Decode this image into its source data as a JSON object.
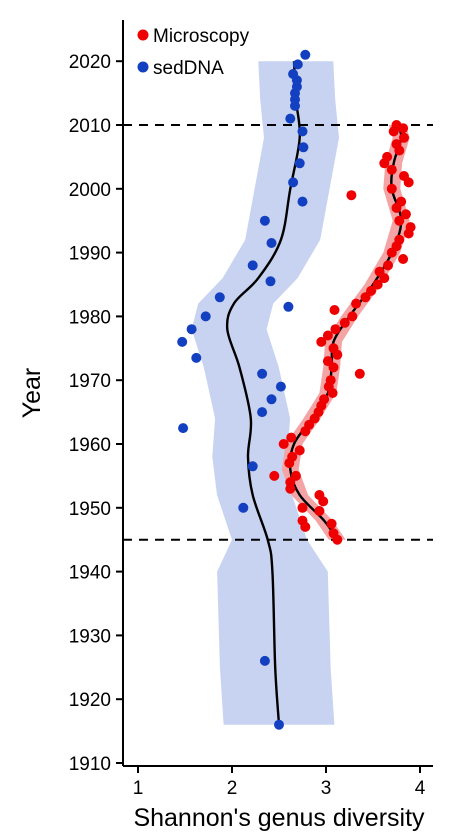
{
  "chart_data": {
    "type": "scatter",
    "title": "",
    "xlabel": "Shannon's genus diversity",
    "ylabel": "Year",
    "xlim": [
      0.82,
      4.15
    ],
    "ylim": [
      1909,
      2022
    ],
    "xticks": [
      1,
      2,
      3,
      4
    ],
    "yticks": [
      1910,
      1920,
      1930,
      1940,
      1950,
      1960,
      1970,
      1980,
      1990,
      2000,
      2010,
      2020
    ],
    "reference_lines_y": [
      1945,
      2010
    ],
    "legend": {
      "position": "top-left"
    },
    "colors": {
      "microscopy": "#ee0000",
      "sedDNA": "#1340c0",
      "sed_band": "#c7d3f1",
      "micro_band": "#f4a4a4",
      "trend": "#000000"
    },
    "series": [
      {
        "name": "Microscopy",
        "points": [
          [
            3.12,
            1945
          ],
          [
            3.08,
            1946
          ],
          [
            3.06,
            1947.5
          ],
          [
            2.78,
            1947
          ],
          [
            2.75,
            1948
          ],
          [
            2.93,
            1949.5
          ],
          [
            2.97,
            1951
          ],
          [
            2.75,
            1950
          ],
          [
            2.93,
            1952
          ],
          [
            2.62,
            1953
          ],
          [
            2.62,
            1954
          ],
          [
            2.45,
            1955
          ],
          [
            2.68,
            1955
          ],
          [
            2.61,
            1957
          ],
          [
            2.64,
            1958
          ],
          [
            2.72,
            1959
          ],
          [
            2.55,
            1960
          ],
          [
            2.63,
            1961
          ],
          [
            2.78,
            1962
          ],
          [
            2.82,
            1963
          ],
          [
            2.88,
            1964
          ],
          [
            2.92,
            1965
          ],
          [
            2.95,
            1966
          ],
          [
            2.98,
            1967
          ],
          [
            3.07,
            1968
          ],
          [
            3.03,
            1969
          ],
          [
            3.05,
            1970
          ],
          [
            3.36,
            1971
          ],
          [
            3.08,
            1972
          ],
          [
            3.02,
            1973
          ],
          [
            3.12,
            1974
          ],
          [
            3.08,
            1975
          ],
          [
            2.95,
            1976
          ],
          [
            3.02,
            1977
          ],
          [
            3.1,
            1978
          ],
          [
            3.2,
            1979
          ],
          [
            3.28,
            1980
          ],
          [
            3.09,
            1981
          ],
          [
            3.32,
            1982
          ],
          [
            3.42,
            1983
          ],
          [
            3.48,
            1984
          ],
          [
            3.55,
            1985
          ],
          [
            3.62,
            1986
          ],
          [
            3.57,
            1987
          ],
          [
            3.66,
            1988
          ],
          [
            3.82,
            1989
          ],
          [
            3.7,
            1990
          ],
          [
            3.75,
            1991
          ],
          [
            3.78,
            1992
          ],
          [
            3.88,
            1993
          ],
          [
            3.9,
            1994
          ],
          [
            3.78,
            1995
          ],
          [
            3.85,
            1996
          ],
          [
            3.75,
            1997
          ],
          [
            3.8,
            1998
          ],
          [
            3.27,
            1999
          ],
          [
            3.7,
            2000
          ],
          [
            3.88,
            2001
          ],
          [
            3.83,
            2002
          ],
          [
            3.7,
            2003
          ],
          [
            3.62,
            2004
          ],
          [
            3.65,
            2005
          ],
          [
            3.78,
            2006
          ],
          [
            3.75,
            2007
          ],
          [
            3.83,
            2008
          ],
          [
            3.72,
            2009
          ],
          [
            3.82,
            2009.5
          ],
          [
            3.75,
            2010
          ]
        ],
        "trend": [
          [
            3.12,
            1945
          ],
          [
            2.98,
            1948
          ],
          [
            2.72,
            1952
          ],
          [
            2.62,
            1956
          ],
          [
            2.66,
            1960
          ],
          [
            2.85,
            1964
          ],
          [
            3.02,
            1968
          ],
          [
            3.06,
            1972
          ],
          [
            3.08,
            1976
          ],
          [
            3.25,
            1980
          ],
          [
            3.5,
            1985
          ],
          [
            3.7,
            1990
          ],
          [
            3.8,
            1995
          ],
          [
            3.7,
            2000
          ],
          [
            3.72,
            2004
          ],
          [
            3.8,
            2008
          ],
          [
            3.76,
            2010
          ]
        ]
      },
      {
        "name": "sedDNA",
        "points": [
          [
            2.5,
            1916
          ],
          [
            2.35,
            1926
          ],
          [
            2.12,
            1950
          ],
          [
            2.22,
            1956.5
          ],
          [
            1.48,
            1962.5
          ],
          [
            2.32,
            1965
          ],
          [
            2.42,
            1967
          ],
          [
            2.52,
            1969
          ],
          [
            2.32,
            1971
          ],
          [
            1.62,
            1973.5
          ],
          [
            1.47,
            1976
          ],
          [
            1.57,
            1978
          ],
          [
            1.72,
            1980
          ],
          [
            2.6,
            1981.5
          ],
          [
            1.87,
            1983
          ],
          [
            2.41,
            1985.5
          ],
          [
            2.22,
            1988
          ],
          [
            2.42,
            1991.5
          ],
          [
            2.35,
            1995
          ],
          [
            2.75,
            1998
          ],
          [
            2.65,
            2001
          ],
          [
            2.72,
            2004
          ],
          [
            2.76,
            2006.5
          ],
          [
            2.75,
            2009
          ],
          [
            2.62,
            2011
          ],
          [
            2.67,
            2013
          ],
          [
            2.67,
            2014
          ],
          [
            2.67,
            2015
          ],
          [
            2.69,
            2016
          ],
          [
            2.69,
            2017
          ],
          [
            2.65,
            2018
          ],
          [
            2.7,
            2019.5
          ],
          [
            2.78,
            2021
          ]
        ],
        "trend": [
          [
            2.5,
            1916
          ],
          [
            2.46,
            1925
          ],
          [
            2.43,
            1940
          ],
          [
            2.38,
            1945
          ],
          [
            2.22,
            1952
          ],
          [
            2.17,
            1958
          ],
          [
            2.2,
            1964
          ],
          [
            2.08,
            1972
          ],
          [
            1.95,
            1978
          ],
          [
            2.02,
            1982
          ],
          [
            2.28,
            1986
          ],
          [
            2.52,
            1992
          ],
          [
            2.62,
            2000
          ],
          [
            2.72,
            2008
          ],
          [
            2.68,
            2014
          ],
          [
            2.66,
            2020
          ]
        ]
      }
    ]
  }
}
